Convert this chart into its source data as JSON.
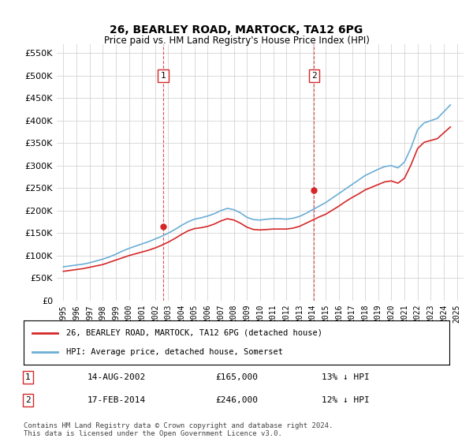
{
  "title": "26, BEARLEY ROAD, MARTOCK, TA12 6PG",
  "subtitle": "Price paid vs. HM Land Registry's House Price Index (HPI)",
  "legend_line1": "26, BEARLEY ROAD, MARTOCK, TA12 6PG (detached house)",
  "legend_line2": "HPI: Average price, detached house, Somerset",
  "footnote": "Contains HM Land Registry data © Crown copyright and database right 2024.\nThis data is licensed under the Open Government Licence v3.0.",
  "transaction1_label": "1",
  "transaction1_date": "14-AUG-2002",
  "transaction1_price": "£165,000",
  "transaction1_hpi": "13% ↓ HPI",
  "transaction2_label": "2",
  "transaction2_date": "17-FEB-2014",
  "transaction2_price": "£246,000",
  "transaction2_hpi": "12% ↓ HPI",
  "hpi_color": "#6baed6",
  "price_color": "#d62728",
  "marker_color": "#d62728",
  "vline_color": "#d62728",
  "grid_color": "#cccccc",
  "background_color": "#ffffff",
  "ylim": [
    0,
    570000
  ],
  "yticks": [
    0,
    50000,
    100000,
    150000,
    200000,
    250000,
    300000,
    350000,
    400000,
    450000,
    500000,
    550000
  ],
  "xtick_years": [
    1995,
    1996,
    1997,
    1998,
    1999,
    2000,
    2001,
    2002,
    2003,
    2004,
    2005,
    2006,
    2007,
    2008,
    2009,
    2010,
    2011,
    2012,
    2013,
    2014,
    2015,
    2016,
    2017,
    2018,
    2019,
    2020,
    2021,
    2022,
    2023,
    2024,
    2025
  ],
  "transaction1_x": 2002.6,
  "transaction1_y": 165000,
  "transaction2_x": 2014.1,
  "transaction2_y": 246000,
  "hpi_x": [
    1995,
    1995.5,
    1996,
    1996.5,
    1997,
    1997.5,
    1998,
    1998.5,
    1999,
    1999.5,
    2000,
    2000.5,
    2001,
    2001.5,
    2002,
    2002.5,
    2003,
    2003.5,
    2004,
    2004.5,
    2005,
    2005.5,
    2006,
    2006.5,
    2007,
    2007.5,
    2008,
    2008.5,
    2009,
    2009.5,
    2010,
    2010.5,
    2011,
    2011.5,
    2012,
    2012.5,
    2013,
    2013.5,
    2014,
    2014.5,
    2015,
    2015.5,
    2016,
    2016.5,
    2017,
    2017.5,
    2018,
    2018.5,
    2019,
    2019.5,
    2020,
    2020.5,
    2021,
    2021.5,
    2022,
    2022.5,
    2023,
    2023.5,
    2024,
    2024.5
  ],
  "hpi_y": [
    75000,
    77000,
    79000,
    81000,
    84000,
    88000,
    92000,
    97000,
    103000,
    110000,
    116000,
    121000,
    126000,
    131000,
    137000,
    143000,
    150000,
    158000,
    167000,
    175000,
    181000,
    184000,
    188000,
    193000,
    200000,
    205000,
    202000,
    195000,
    185000,
    180000,
    179000,
    181000,
    182000,
    182000,
    181000,
    183000,
    187000,
    194000,
    202000,
    210000,
    218000,
    228000,
    238000,
    248000,
    258000,
    268000,
    278000,
    285000,
    292000,
    298000,
    300000,
    295000,
    308000,
    340000,
    380000,
    395000,
    400000,
    405000,
    420000,
    435000
  ],
  "price_x": [
    1995,
    1995.5,
    1996,
    1996.5,
    1997,
    1997.5,
    1998,
    1998.5,
    1999,
    1999.5,
    2000,
    2000.5,
    2001,
    2001.5,
    2002,
    2002.5,
    2003,
    2003.5,
    2004,
    2004.5,
    2005,
    2005.5,
    2006,
    2006.5,
    2007,
    2007.5,
    2008,
    2008.5,
    2009,
    2009.5,
    2010,
    2010.5,
    2011,
    2011.5,
    2012,
    2012.5,
    2013,
    2013.5,
    2014,
    2014.5,
    2015,
    2015.5,
    2016,
    2016.5,
    2017,
    2017.5,
    2018,
    2018.5,
    2019,
    2019.5,
    2020,
    2020.5,
    2021,
    2021.5,
    2022,
    2022.5,
    2023,
    2023.5,
    2024,
    2024.5
  ],
  "price_y": [
    65000,
    67000,
    69000,
    71000,
    74000,
    77000,
    80000,
    85000,
    90000,
    95000,
    100000,
    104000,
    108000,
    112000,
    117000,
    123000,
    130000,
    138000,
    147000,
    155000,
    160000,
    162000,
    165000,
    170000,
    177000,
    182000,
    179000,
    172000,
    163000,
    158000,
    157000,
    158000,
    159000,
    159000,
    159000,
    161000,
    165000,
    172000,
    179000,
    186000,
    192000,
    201000,
    210000,
    220000,
    229000,
    237000,
    246000,
    252000,
    258000,
    264000,
    266000,
    261000,
    272000,
    302000,
    338000,
    352000,
    356000,
    360000,
    373000,
    386000
  ]
}
